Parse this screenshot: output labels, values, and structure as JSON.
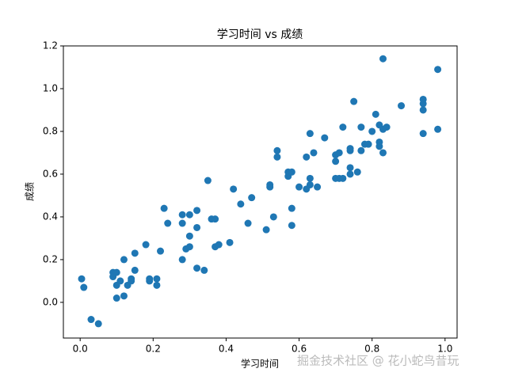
{
  "chart_data": {
    "type": "scatter",
    "title": "学习时间 vs 成绩",
    "xlabel": "学习时间",
    "ylabel": "成绩",
    "color": "#1f77b4",
    "x": [
      0.004,
      0.01,
      0.03,
      0.05,
      0.09,
      0.09,
      0.1,
      0.1,
      0.11,
      0.1,
      0.12,
      0.12,
      0.13,
      0.14,
      0.14,
      0.15,
      0.15,
      0.18,
      0.19,
      0.19,
      0.21,
      0.21,
      0.22,
      0.23,
      0.24,
      0.28,
      0.28,
      0.28,
      0.29,
      0.3,
      0.3,
      0.3,
      0.32,
      0.32,
      0.32,
      0.34,
      0.35,
      0.36,
      0.37,
      0.37,
      0.38,
      0.41,
      0.42,
      0.44,
      0.46,
      0.47,
      0.51,
      0.52,
      0.52,
      0.53,
      0.54,
      0.54,
      0.57,
      0.57,
      0.58,
      0.58,
      0.58,
      0.6,
      0.62,
      0.63,
      0.63,
      0.62,
      0.63,
      0.64,
      0.65,
      0.67,
      0.7,
      0.7,
      0.7,
      0.71,
      0.72,
      0.71,
      0.72,
      0.74,
      0.74,
      0.74,
      0.74,
      0.75,
      0.76,
      0.77,
      0.77,
      0.78,
      0.79,
      0.8,
      0.81,
      0.82,
      0.82,
      0.82,
      0.83,
      0.83,
      0.84,
      0.83,
      0.88,
      0.94,
      0.94,
      0.94,
      0.94,
      0.98,
      0.98
    ],
    "y": [
      0.11,
      0.07,
      -0.08,
      -0.1,
      0.14,
      0.12,
      0.14,
      0.08,
      0.1,
      0.02,
      0.03,
      0.2,
      0.08,
      0.1,
      0.11,
      0.23,
      0.15,
      0.27,
      0.11,
      0.1,
      0.11,
      0.08,
      0.24,
      0.44,
      0.37,
      0.2,
      0.41,
      0.37,
      0.25,
      0.31,
      0.41,
      0.26,
      0.43,
      0.35,
      0.16,
      0.15,
      0.57,
      0.39,
      0.39,
      0.26,
      0.27,
      0.28,
      0.53,
      0.46,
      0.37,
      0.49,
      0.34,
      0.55,
      0.54,
      0.4,
      0.71,
      0.68,
      0.59,
      0.61,
      0.36,
      0.44,
      0.61,
      0.54,
      0.68,
      0.79,
      0.58,
      0.53,
      0.55,
      0.7,
      0.54,
      0.77,
      0.66,
      0.69,
      0.58,
      0.58,
      0.58,
      0.7,
      0.82,
      0.71,
      0.72,
      0.63,
      0.6,
      0.94,
      0.61,
      0.71,
      0.82,
      0.74,
      0.74,
      0.8,
      0.88,
      0.83,
      0.75,
      0.73,
      0.7,
      0.81,
      0.82,
      1.14,
      0.92,
      0.79,
      0.93,
      0.95,
      0.9,
      1.09,
      0.81
    ],
    "xlim": [
      -0.046,
      1.033
    ],
    "ylim": [
      -0.167,
      1.2
    ],
    "xticks": [
      {
        "value": 0,
        "label": "0.0"
      },
      {
        "value": 0.2,
        "label": "0.2"
      },
      {
        "value": 0.4,
        "label": "0.4"
      },
      {
        "value": 0.6,
        "label": "0.6"
      },
      {
        "value": 0.8,
        "label": "0.8"
      },
      {
        "value": 1,
        "label": "1.0"
      }
    ],
    "yticks": [
      {
        "value": 0,
        "label": "0.0"
      },
      {
        "value": 0.2,
        "label": "0.2"
      },
      {
        "value": 0.4,
        "label": "0.4"
      },
      {
        "value": 0.6,
        "label": "0.6"
      },
      {
        "value": 0.8,
        "label": "0.8"
      },
      {
        "value": 1,
        "label": "1.0"
      },
      {
        "value": 1.2,
        "label": "1.2"
      }
    ],
    "watermark": "掘金技术社区 @ 花小蛇鸟昔玩"
  }
}
